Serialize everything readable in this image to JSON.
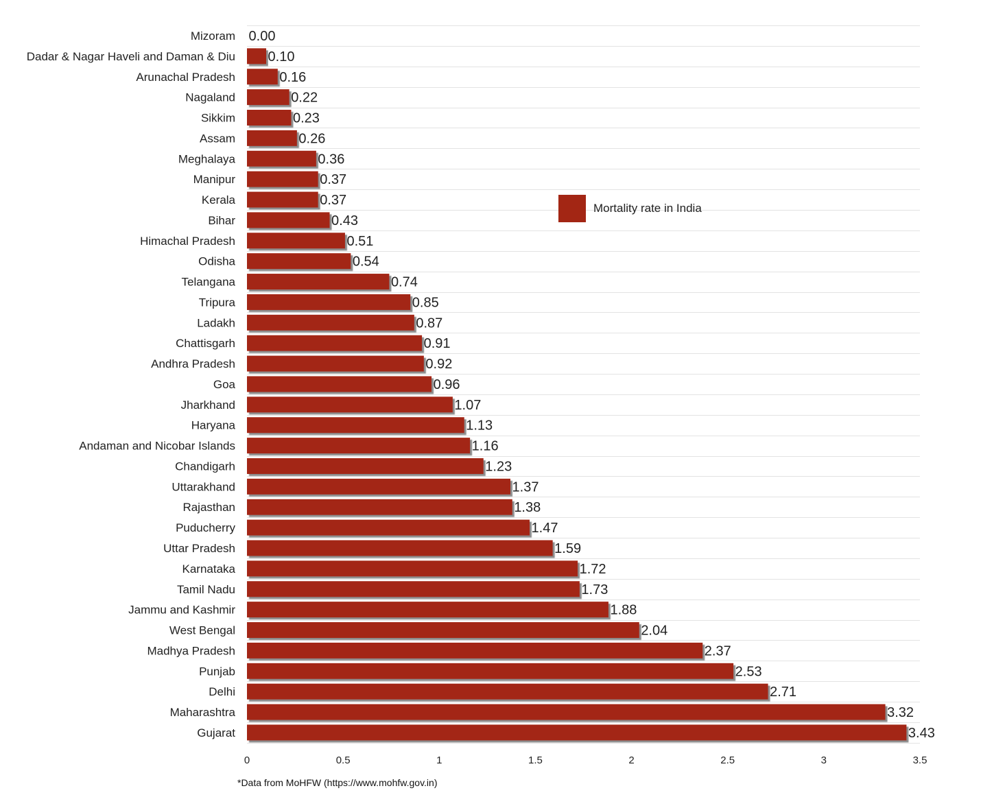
{
  "chart_data": {
    "type": "bar",
    "orientation": "horizontal",
    "categories": [
      "Mizoram",
      "Dadar & Nagar Haveli and Daman & Diu",
      "Arunachal Pradesh",
      "Nagaland",
      "Sikkim",
      "Assam",
      "Meghalaya",
      "Manipur",
      "Kerala",
      "Bihar",
      "Himachal Pradesh",
      "Odisha",
      "Telangana",
      "Tripura",
      "Ladakh",
      "Chattisgarh",
      "Andhra Pradesh",
      "Goa",
      "Jharkhand",
      "Haryana",
      "Andaman and Nicobar Islands",
      "Chandigarh",
      "Uttarakhand",
      "Rajasthan",
      "Puducherry",
      "Uttar Pradesh",
      "Karnataka",
      "Tamil Nadu",
      "Jammu and Kashmir",
      "West Bengal",
      "Madhya Pradesh",
      "Punjab",
      "Delhi",
      "Maharashtra",
      "Gujarat"
    ],
    "series": [
      {
        "name": "Mortality rate in India",
        "values": [
          0.0,
          0.1,
          0.16,
          0.22,
          0.23,
          0.26,
          0.36,
          0.37,
          0.37,
          0.43,
          0.51,
          0.54,
          0.74,
          0.85,
          0.87,
          0.91,
          0.92,
          0.96,
          1.07,
          1.13,
          1.16,
          1.23,
          1.37,
          1.38,
          1.47,
          1.59,
          1.72,
          1.73,
          1.88,
          2.04,
          2.37,
          2.53,
          2.71,
          3.32,
          3.43
        ],
        "value_labels": [
          "0.00",
          "0.10",
          "0.16",
          "0.22",
          "0.23",
          "0.26",
          "0.36",
          "0.37",
          "0.37",
          "0.43",
          "0.51",
          "0.54",
          "0.74",
          "0.85",
          "0.87",
          "0.91",
          "0.92",
          "0.96",
          "1.07",
          "1.13",
          "1.16",
          "1.23",
          "1.37",
          "1.38",
          "1.47",
          "1.59",
          "1.72",
          "1.73",
          "1.88",
          "2.04",
          "2.37",
          "2.53",
          "2.71",
          "3.32",
          "3.43"
        ],
        "color": "#a32614"
      }
    ],
    "xlim": [
      0,
      3.5
    ],
    "x_ticks": [
      "0",
      "0.5",
      "1",
      "1.5",
      "2",
      "2.5",
      "3",
      "3.5"
    ],
    "grid": true,
    "legend_position": "top-right",
    "title": "",
    "xlabel": "",
    "ylabel": ""
  },
  "legend": {
    "label": "Mortality rate in India"
  },
  "footnote": "*Data from MoHFW (https://www.mohfw.gov.in)"
}
